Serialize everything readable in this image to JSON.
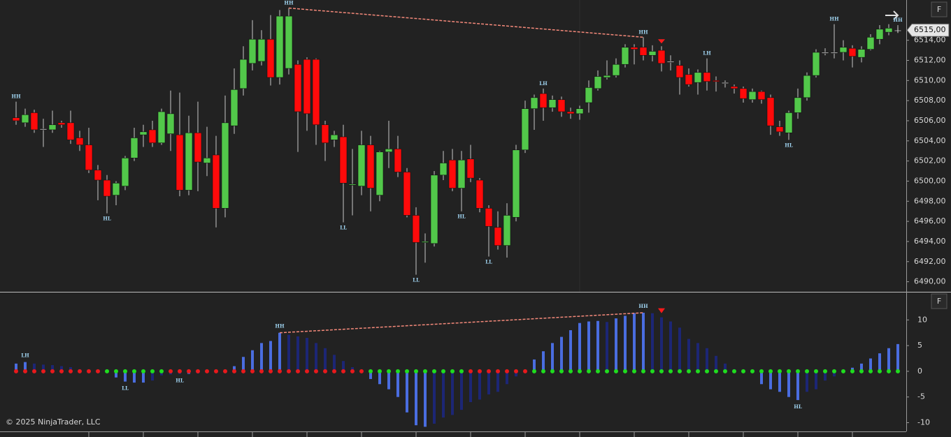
{
  "chart_data": [
    {
      "type": "candlestick",
      "open": [
        6506.3,
        6505.8,
        6506.8,
        6505.2,
        6505.1,
        6505.8,
        6505.8,
        6504.3,
        6503.6,
        6501.1,
        6500.1,
        6498.6,
        6499.5,
        6502.3,
        6504.6,
        6505.1,
        6503.8,
        6504.7,
        6504.6,
        6499.1,
        6504.8,
        6501.8,
        6502.6,
        6497.3,
        6505.5,
        6509.2,
        6511.7,
        6511.9,
        6514.1,
        6510.3,
        6511.2,
        6511.6,
        6512.1,
        6512.1,
        6505.6,
        6504.1,
        6504.4,
        6499.6,
        6499.5,
        6503.6,
        6498.6,
        6502.9,
        6503.2,
        6500.9,
        6496.6,
        6493.9,
        6493.8,
        6500.6,
        6502.1,
        6499.3,
        6502.2,
        6500.1,
        6497.3,
        6495.4,
        6493.6,
        6496.4,
        6503.1,
        6507.2,
        6508.7,
        6507.3,
        6508.1,
        6506.9,
        6506.7,
        6507.8,
        6509.2,
        6510.3,
        6510.5,
        6511.6,
        6513.3,
        6513.3,
        6512.5,
        6513.0,
        6511.9,
        6511.5,
        6510.6,
        6509.8,
        6510.8,
        6510.0,
        6509.8,
        6509.4,
        6509.2,
        6508.1,
        6508.9,
        6508.3,
        6505.4,
        6504.8,
        6506.8,
        6508.3,
        6510.5,
        6512.8,
        6512.8,
        6512.8,
        6513.2,
        6512.3,
        6513.1,
        6514.1,
        6514.8,
        6515.0
      ],
      "high": [
        6507.9,
        6507.2,
        6507.1,
        6506.2,
        6507.0,
        6506.0,
        6507.0,
        6505.0,
        6505.3,
        6501.6,
        6500.6,
        6500.0,
        6502.5,
        6505.3,
        6505.6,
        6506.0,
        6507.2,
        6509.0,
        6508.8,
        6506.5,
        6507.9,
        6505.4,
        6504.5,
        6508.5,
        6511.2,
        6513.4,
        6516.0,
        6515.0,
        6516.5,
        6517.0,
        6517.2,
        6512.0,
        6512.3,
        6512.2,
        6506.0,
        6505.0,
        6505.6,
        6503.2,
        6505.0,
        6504.5,
        6503.0,
        6506.0,
        6504.5,
        6501.3,
        6497.4,
        6494.8,
        6501.0,
        6503.0,
        6503.2,
        6503.0,
        6503.6,
        6500.3,
        6497.6,
        6497.0,
        6497.8,
        6503.6,
        6508.0,
        6508.6,
        6509.2,
        6508.5,
        6508.4,
        6507.3,
        6507.5,
        6510.0,
        6511.0,
        6512.0,
        6512.2,
        6513.6,
        6513.6,
        6514.3,
        6513.5,
        6513.4,
        6512.5,
        6512.0,
        6511.2,
        6511.1,
        6512.2,
        6510.4,
        6510.0,
        6509.6,
        6509.4,
        6509.2,
        6509.0,
        6508.6,
        6506.0,
        6507.0,
        6509.2,
        6510.8,
        6513.1,
        6513.2,
        6515.6,
        6514.0,
        6513.5,
        6513.4,
        6514.6,
        6515.5,
        6515.6,
        6515.5
      ],
      "low": [
        6505.6,
        6505.4,
        6504.8,
        6503.4,
        6504.8,
        6505.3,
        6503.7,
        6503.0,
        6500.8,
        6498.1,
        6496.8,
        6497.6,
        6499.1,
        6502.0,
        6503.4,
        6503.4,
        6503.6,
        6503.0,
        6498.5,
        6498.6,
        6499.0,
        6500.5,
        6495.4,
        6496.4,
        6504.7,
        6508.5,
        6511.0,
        6511.5,
        6509.5,
        6509.6,
        6510.6,
        6502.9,
        6505.0,
        6503.6,
        6502.0,
        6503.4,
        6495.9,
        6496.6,
        6498.6,
        6497.0,
        6498.0,
        6501.3,
        6500.4,
        6496.4,
        6490.7,
        6491.9,
        6493.5,
        6500.1,
        6499.0,
        6497.0,
        6499.9,
        6496.9,
        6492.5,
        6493.2,
        6492.4,
        6496.0,
        6502.8,
        6505.1,
        6506.0,
        6506.9,
        6506.4,
        6506.2,
        6506.1,
        6506.8,
        6509.0,
        6510.1,
        6510.3,
        6511.3,
        6511.6,
        6512.0,
        6511.9,
        6510.9,
        6511.0,
        6508.6,
        6509.4,
        6508.6,
        6509.0,
        6508.9,
        6509.3,
        6508.7,
        6507.8,
        6507.8,
        6507.7,
        6504.6,
        6504.5,
        6504.1,
        6506.2,
        6508.0,
        6510.3,
        6512.5,
        6512.2,
        6512.0,
        6511.3,
        6511.8,
        6513.0,
        6513.6,
        6514.5,
        6514.9
      ],
      "close": [
        6506.0,
        6506.6,
        6505.1,
        6505.2,
        6505.6,
        6505.6,
        6504.1,
        6503.6,
        6501.1,
        6500.1,
        6498.5,
        6499.8,
        6502.3,
        6504.3,
        6504.9,
        6503.8,
        6506.9,
        6506.7,
        6499.1,
        6504.8,
        6501.9,
        6502.3,
        6497.3,
        6505.8,
        6509.1,
        6512.1,
        6514.1,
        6514.1,
        6510.3,
        6516.4,
        6516.4,
        6506.9,
        6506.7,
        6505.6,
        6503.8,
        6504.6,
        6499.8,
        6499.7,
        6503.6,
        6499.3,
        6502.9,
        6503.2,
        6500.9,
        6496.6,
        6493.9,
        6494.0,
        6500.6,
        6501.8,
        6499.3,
        6502.1,
        6500.3,
        6497.3,
        6495.5,
        6493.6,
        6496.6,
        6503.1,
        6507.2,
        6508.3,
        6507.3,
        6508.1,
        6506.9,
        6506.7,
        6507.2,
        6509.3,
        6510.4,
        6510.5,
        6511.6,
        6513.3,
        6513.1,
        6512.5,
        6512.9,
        6511.7,
        6511.9,
        6510.3,
        6509.6,
        6510.8,
        6509.9,
        6509.9,
        6509.8,
        6509.2,
        6508.2,
        6508.9,
        6508.1,
        6505.5,
        6504.9,
        6506.8,
        6508.3,
        6510.5,
        6512.8,
        6512.8,
        6512.8,
        6513.3,
        6512.4,
        6513.1,
        6514.3,
        6515.1,
        6515.2,
        6515.0
      ],
      "swing_labels": [
        "HH",
        null,
        null,
        null,
        null,
        null,
        null,
        null,
        null,
        null,
        "HL",
        null,
        null,
        null,
        null,
        null,
        null,
        null,
        null,
        null,
        null,
        null,
        null,
        null,
        null,
        null,
        null,
        null,
        null,
        null,
        "HH",
        null,
        null,
        null,
        null,
        null,
        "LL",
        null,
        null,
        null,
        null,
        null,
        null,
        null,
        "LL",
        null,
        null,
        null,
        null,
        "HL",
        null,
        null,
        "LL",
        null,
        null,
        null,
        null,
        null,
        "LH",
        null,
        null,
        null,
        null,
        null,
        null,
        null,
        null,
        null,
        null,
        "HH",
        null,
        null,
        null,
        null,
        null,
        null,
        "LH",
        null,
        null,
        null,
        null,
        null,
        null,
        null,
        null,
        "HL",
        null,
        null,
        null,
        null,
        "HH",
        null,
        null,
        null,
        null,
        null,
        null,
        "HH"
      ],
      "up_color": "#52c84a",
      "down_color": "#ff0a0a",
      "wick_color": "#c8c8c8",
      "ylim": [
        6489,
        6518
      ],
      "yticks": [
        {
          "value": 6490,
          "label": "6490,00"
        },
        {
          "value": 6492,
          "label": "6492,00"
        },
        {
          "value": 6494,
          "label": "6494,00"
        },
        {
          "value": 6496,
          "label": "6496,00"
        },
        {
          "value": 6498,
          "label": "6498,00"
        },
        {
          "value": 6500,
          "label": "6500,00"
        },
        {
          "value": 6502,
          "label": "6502,00"
        },
        {
          "value": 6504,
          "label": "6504,00"
        },
        {
          "value": 6506,
          "label": "6506,00"
        },
        {
          "value": 6508,
          "label": "6508,00"
        },
        {
          "value": 6510,
          "label": "6510,00"
        },
        {
          "value": 6512,
          "label": "6512,00"
        },
        {
          "value": 6514,
          "label": "6514,00"
        }
      ],
      "last_price": {
        "value": 6515,
        "label": "6515,00"
      },
      "divergence": {
        "from_index": 30,
        "to_index": 69,
        "color": "#f4897a"
      },
      "signal_index": 71,
      "signal_color": "#ff1a1a"
    },
    {
      "type": "bar",
      "values": [
        1.5,
        1.8,
        1.5,
        1.3,
        1.2,
        1.0,
        0.8,
        0.4,
        0.2,
        0.1,
        -0.2,
        -1.2,
        -2.0,
        -2.2,
        -2.2,
        -1.8,
        -0.8,
        -0.6,
        -0.5,
        -0.5,
        -0.4,
        -0.3,
        -0.2,
        0.2,
        1.0,
        2.8,
        4.1,
        5.5,
        5.9,
        7.5,
        7.1,
        6.8,
        6.5,
        5.5,
        4.5,
        3.2,
        2.0,
        0.8,
        0.2,
        -1.5,
        -2.5,
        -3.5,
        -5.0,
        -8.0,
        -10.5,
        -10.8,
        -10.2,
        -9.0,
        -8.5,
        -7.5,
        -6.0,
        -5.5,
        -4.5,
        -4.0,
        -2.5,
        -1.0,
        -0.1,
        2.3,
        3.9,
        5.5,
        6.7,
        8.0,
        9.4,
        9.7,
        9.8,
        9.6,
        10.3,
        10.8,
        11.3,
        11.4,
        11.3,
        10.5,
        9.7,
        8.5,
        6.3,
        5.5,
        4.5,
        3.0,
        1.5,
        0.4,
        -0.1,
        -0.2,
        -2.5,
        -3.5,
        -4.0,
        -5.0,
        -5.6,
        -4.0,
        -3.5,
        -1.8,
        -1.0,
        -0.1,
        0.7,
        1.5,
        2.5,
        3.5,
        4.5,
        5.3
      ],
      "dot_colors": [
        "#e8191c",
        "#e8191c",
        "#e8191c",
        "#e8191c",
        "#e8191c",
        "#e8191c",
        "#e8191c",
        "#e8191c",
        "#e8191c",
        "#e8191c",
        "#1fdc1f",
        "#1fdc1f",
        "#1fdc1f",
        "#1fdc1f",
        "#1fdc1f",
        "#1fdc1f",
        "#1fdc1f",
        "#e8191c",
        "#e8191c",
        "#e8191c",
        "#e8191c",
        "#e8191c",
        "#e8191c",
        "#e8191c",
        "#e8191c",
        "#e8191c",
        "#e8191c",
        "#e8191c",
        "#e8191c",
        "#e8191c",
        "#e8191c",
        "#e8191c",
        "#e8191c",
        "#e8191c",
        "#e8191c",
        "#e8191c",
        "#e8191c",
        "#e8191c",
        "#e8191c",
        "#1fdc1f",
        "#1fdc1f",
        "#1fdc1f",
        "#1fdc1f",
        "#1fdc1f",
        "#1fdc1f",
        "#1fdc1f",
        "#1fdc1f",
        "#1fdc1f",
        "#1fdc1f",
        "#1fdc1f",
        "#e8191c",
        "#e8191c",
        "#e8191c",
        "#e8191c",
        "#e8191c",
        "#e8191c",
        "#e8191c",
        "#1fdc1f",
        "#1fdc1f",
        "#1fdc1f",
        "#1fdc1f",
        "#1fdc1f",
        "#1fdc1f",
        "#1fdc1f",
        "#1fdc1f",
        "#1fdc1f",
        "#1fdc1f",
        "#1fdc1f",
        "#1fdc1f",
        "#1fdc1f",
        "#1fdc1f",
        "#1fdc1f",
        "#1fdc1f",
        "#1fdc1f",
        "#1fdc1f",
        "#1fdc1f",
        "#1fdc1f",
        "#1fdc1f",
        "#1fdc1f",
        "#1fdc1f",
        "#1fdc1f",
        "#1fdc1f",
        "#1fdc1f",
        "#1fdc1f",
        "#1fdc1f",
        "#1fdc1f",
        "#1fdc1f",
        "#1fdc1f",
        "#1fdc1f",
        "#1fdc1f",
        "#1fdc1f",
        "#1fdc1f",
        "#1fdc1f",
        "#1fdc1f",
        "#1fdc1f",
        "#1fdc1f",
        "#1fdc1f",
        "#1fdc1f"
      ],
      "swing_labels": [
        null,
        "LH",
        null,
        null,
        null,
        null,
        null,
        null,
        null,
        null,
        null,
        null,
        "LL",
        null,
        null,
        null,
        null,
        null,
        "HL",
        null,
        null,
        null,
        null,
        null,
        null,
        null,
        null,
        null,
        null,
        "HH",
        null,
        null,
        null,
        null,
        null,
        null,
        null,
        null,
        null,
        null,
        null,
        null,
        null,
        null,
        null,
        null,
        null,
        null,
        null,
        null,
        null,
        null,
        null,
        null,
        null,
        null,
        null,
        null,
        null,
        null,
        null,
        null,
        null,
        null,
        null,
        null,
        null,
        null,
        null,
        "HH",
        null,
        null,
        null,
        null,
        null,
        null,
        null,
        null,
        null,
        null,
        null,
        null,
        null,
        null,
        null,
        null,
        "HL",
        null,
        null,
        null,
        null,
        null,
        null,
        null,
        null,
        null,
        null,
        null
      ],
      "rising_color": "#4a6de0",
      "falling_color": "#1c2675",
      "ylim": [
        -11.7,
        15.2
      ],
      "yticks": [
        10,
        5,
        0,
        -5,
        -10
      ],
      "divergence": {
        "from_index": 29,
        "to_index": 69,
        "color": "#f4897a"
      },
      "signal_index": 71,
      "signal_color": "#ff1a1a"
    }
  ],
  "panel_buttons": [
    "F",
    "F"
  ],
  "copyright": "© 2025 NinjaTrader, LLC"
}
